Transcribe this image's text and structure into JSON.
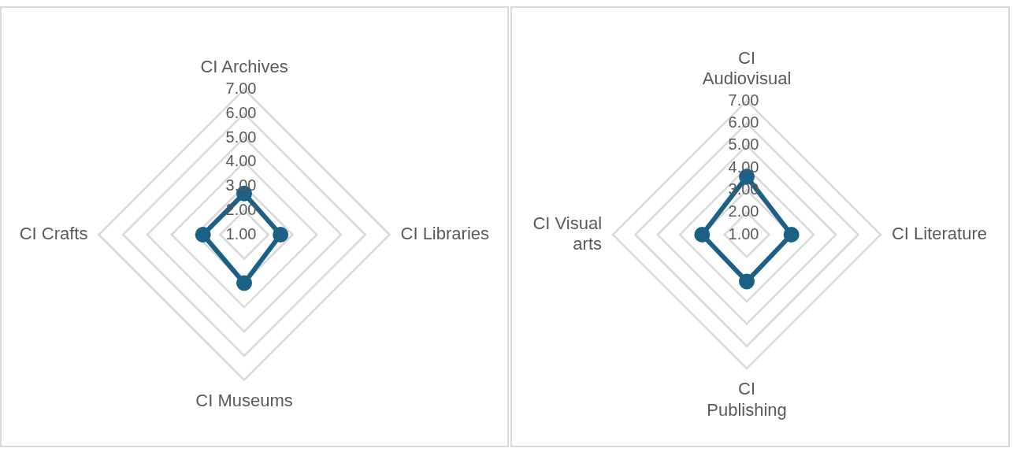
{
  "chart_data": [
    {
      "type": "radar",
      "categories": [
        "CI Archives",
        "CI Libraries",
        "CI Museums",
        "CI Crafts"
      ],
      "series": [
        {
          "color": "#1b6185",
          "values": [
            2.7,
            2.5,
            3.0,
            2.7
          ]
        }
      ],
      "ylim": [
        1,
        7
      ],
      "yticks": [
        {
          "value": 1,
          "label": "1.00"
        },
        {
          "value": 2,
          "label": "2.00"
        },
        {
          "value": 3,
          "label": "3.00"
        },
        {
          "value": 4,
          "label": "4.00"
        },
        {
          "value": 5,
          "label": "5.00"
        },
        {
          "value": 6,
          "label": "6.00"
        },
        {
          "value": 7,
          "label": "7.00"
        }
      ],
      "grid": true,
      "marker": "circle",
      "legend": false
    },
    {
      "type": "radar",
      "categories": [
        "CI Audiovisual",
        "CI Literature",
        "CI Publishing",
        "CI Visual arts"
      ],
      "series": [
        {
          "color": "#1b6185",
          "values": [
            3.6,
            3.0,
            3.1,
            3.0
          ]
        }
      ],
      "ylim": [
        1,
        7
      ],
      "yticks": [
        {
          "value": 1,
          "label": "1.00"
        },
        {
          "value": 2,
          "label": "2.00"
        },
        {
          "value": 3,
          "label": "3.00"
        },
        {
          "value": 4,
          "label": "4.00"
        },
        {
          "value": 5,
          "label": "5.00"
        },
        {
          "value": 6,
          "label": "6.00"
        },
        {
          "value": 7,
          "label": "7.00"
        }
      ],
      "grid": true,
      "marker": "circle",
      "legend": false
    }
  ]
}
